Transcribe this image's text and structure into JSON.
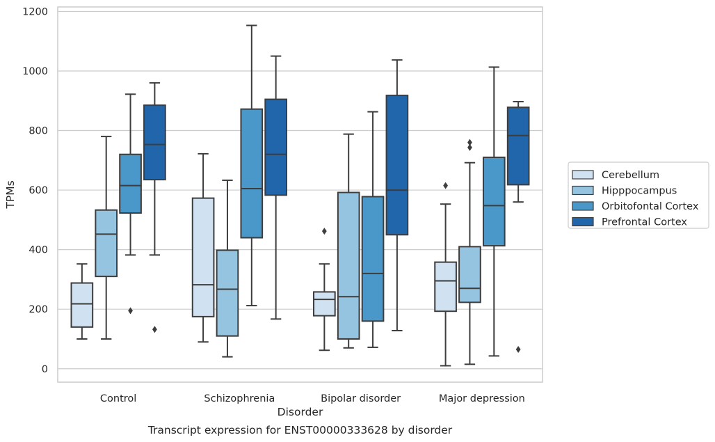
{
  "chart_data": {
    "type": "box",
    "title": "Transcript expression for ENST00000333628 by disorder",
    "xlabel": "Disorder",
    "ylabel": "TPMs",
    "ylim": [
      -45,
      1215
    ],
    "yticks": [
      0,
      200,
      400,
      600,
      800,
      1000,
      1200
    ],
    "grid": "horizontal",
    "legend_position": "right",
    "categories": [
      "Control",
      "Schizophrenia",
      "Bipolar disorder",
      "Major depression"
    ],
    "series": [
      {
        "name": "Cerebellum",
        "color": "#d0e1f2",
        "boxes": [
          {
            "whisker_low": 100,
            "q1": 140,
            "median": 218,
            "q3": 288,
            "whisker_high": 352,
            "outliers": []
          },
          {
            "whisker_low": 90,
            "q1": 175,
            "median": 282,
            "q3": 573,
            "whisker_high": 722,
            "outliers": []
          },
          {
            "whisker_low": 62,
            "q1": 178,
            "median": 233,
            "q3": 258,
            "whisker_high": 352,
            "outliers": [
              462
            ]
          },
          {
            "whisker_low": 10,
            "q1": 193,
            "median": 295,
            "q3": 358,
            "whisker_high": 553,
            "outliers": [
              615
            ]
          }
        ]
      },
      {
        "name": "Hipppocampus",
        "color": "#94c4df",
        "boxes": [
          {
            "whisker_low": 100,
            "q1": 310,
            "median": 452,
            "q3": 533,
            "whisker_high": 780,
            "outliers": []
          },
          {
            "whisker_low": 40,
            "q1": 110,
            "median": 267,
            "q3": 398,
            "whisker_high": 633,
            "outliers": []
          },
          {
            "whisker_low": 70,
            "q1": 100,
            "median": 242,
            "q3": 592,
            "whisker_high": 788,
            "outliers": []
          },
          {
            "whisker_low": 15,
            "q1": 223,
            "median": 270,
            "q3": 410,
            "whisker_high": 692,
            "outliers": [
              743,
              760
            ]
          }
        ]
      },
      {
        "name": "Orbitofontal Cortex",
        "color": "#4a98c9",
        "boxes": [
          {
            "whisker_low": 382,
            "q1": 523,
            "median": 615,
            "q3": 720,
            "whisker_high": 922,
            "outliers": [
              195
            ]
          },
          {
            "whisker_low": 212,
            "q1": 440,
            "median": 605,
            "q3": 872,
            "whisker_high": 1153,
            "outliers": []
          },
          {
            "whisker_low": 72,
            "q1": 160,
            "median": 320,
            "q3": 578,
            "whisker_high": 863,
            "outliers": []
          },
          {
            "whisker_low": 43,
            "q1": 413,
            "median": 548,
            "q3": 710,
            "whisker_high": 1013,
            "outliers": []
          }
        ]
      },
      {
        "name": "Prefrontal Cortex",
        "color": "#2165ab",
        "boxes": [
          {
            "whisker_low": 382,
            "q1": 635,
            "median": 753,
            "q3": 885,
            "whisker_high": 960,
            "outliers": [
              132
            ]
          },
          {
            "whisker_low": 167,
            "q1": 583,
            "median": 720,
            "q3": 905,
            "whisker_high": 1050,
            "outliers": []
          },
          {
            "whisker_low": 128,
            "q1": 450,
            "median": 600,
            "q3": 918,
            "whisker_high": 1037,
            "outliers": []
          },
          {
            "whisker_low": 560,
            "q1": 618,
            "median": 783,
            "q3": 878,
            "whisker_high": 897,
            "outliers": [
              65
            ]
          }
        ]
      }
    ]
  }
}
